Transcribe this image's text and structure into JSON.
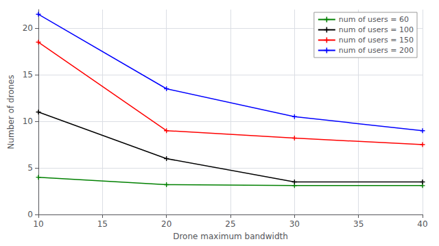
{
  "chart_data": {
    "type": "line",
    "title": "",
    "xlabel": "Drone maximum bandwidth",
    "ylabel": "Number of drones",
    "xlim": [
      10,
      40
    ],
    "xticks": [
      10,
      15,
      20,
      25,
      30,
      35,
      40
    ],
    "ylim": [
      0,
      22
    ],
    "yticks": [
      0,
      5,
      10,
      15,
      20
    ],
    "grid": true,
    "legend": "upper right",
    "marker": "+",
    "line_style": "solid",
    "series": [
      {
        "name": "num of users = 60",
        "color": "green",
        "x": [
          10,
          20,
          30,
          40
        ],
        "values": [
          4.0,
          3.2,
          3.1,
          3.1
        ]
      },
      {
        "name": "num of users = 100",
        "color": "black",
        "x": [
          10,
          20,
          30,
          40
        ],
        "values": [
          11.0,
          6.0,
          3.5,
          3.5
        ]
      },
      {
        "name": "num of users = 150",
        "color": "red",
        "x": [
          10,
          20,
          30,
          40
        ],
        "values": [
          18.5,
          9.0,
          8.2,
          7.5
        ]
      },
      {
        "name": "num of users = 200",
        "color": "blue",
        "x": [
          10,
          20,
          30,
          40
        ],
        "values": [
          21.5,
          13.5,
          10.5,
          9.0
        ]
      }
    ]
  }
}
